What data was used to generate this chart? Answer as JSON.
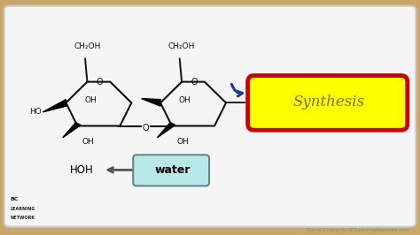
{
  "bg_outer": "#c8a868",
  "bg_inner": "#f5f5f5",
  "border_inner_color": "#cccccc",
  "synthesis_box_fill": "#ffff00",
  "synthesis_box_edge": "#cc0000",
  "synthesis_text": "Synthesis",
  "synthesis_text_color": "#7a7000",
  "water_box_fill": "#b8e8e8",
  "water_box_edge": "#608888",
  "water_text": "water",
  "water_text_color": "#000000",
  "hoh_text": "HOH",
  "hoh_color": "#000000",
  "arrow_color": "#555555",
  "blue_arrow_color": "#1a3a99",
  "bottom_text": "Darrol Colgur for BCLearningNetwork.com",
  "bottom_text_color": "#888888",
  "ring_color": "#111111",
  "ring_fill": "#f5f5f5",
  "ch2oh_sub": "2"
}
